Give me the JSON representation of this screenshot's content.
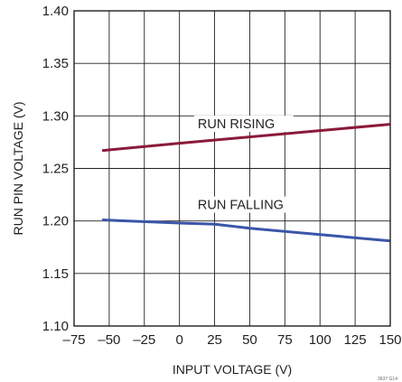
{
  "chart_data": {
    "type": "line",
    "xlabel": "INPUT VOLTAGE (V)",
    "ylabel": "RUN PIN VOLTAGE (V)",
    "xlim": [
      -75,
      150
    ],
    "ylim": [
      1.1,
      1.4
    ],
    "x_ticks": [
      "–75",
      "–50",
      "–25",
      "0",
      "25",
      "50",
      "75",
      "100",
      "125",
      "150"
    ],
    "y_ticks": [
      "1.40",
      "1.35",
      "1.30",
      "1.25",
      "1.20",
      "1.15",
      "1.10"
    ],
    "grid": true,
    "series": [
      {
        "name": "RUN RISING",
        "color": "#8b1a3a",
        "x": [
          -55,
          0,
          50,
          100,
          150
        ],
        "y": [
          1.267,
          1.274,
          1.28,
          1.286,
          1.292
        ]
      },
      {
        "name": "RUN FALLING",
        "color": "#3b55a8",
        "x": [
          -55,
          0,
          25,
          50,
          100,
          150
        ],
        "y": [
          1.201,
          1.198,
          1.197,
          1.193,
          1.187,
          1.181
        ]
      }
    ],
    "figure_note": "3637 G14"
  }
}
